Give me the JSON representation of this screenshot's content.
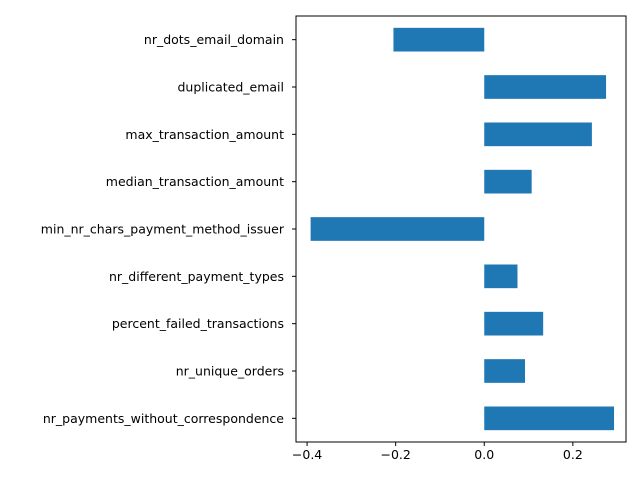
{
  "chart_data": {
    "type": "bar",
    "orientation": "horizontal",
    "categories": [
      "nr_dots_email_domain",
      "duplicated_email",
      "max_transaction_amount",
      "median_transaction_amount",
      "min_nr_chars_payment_method_issuer",
      "nr_different_payment_types",
      "percent_failed_transactions",
      "nr_unique_orders",
      "nr_payments_without_correspondence"
    ],
    "values": [
      -0.205,
      0.275,
      0.243,
      0.107,
      -0.392,
      0.075,
      0.133,
      0.092,
      0.293
    ],
    "xlim": [
      -0.425,
      0.32
    ],
    "xticks": [
      -0.4,
      -0.2,
      0.0,
      0.2
    ],
    "xtick_labels": [
      "−0.4",
      "−0.2",
      "0.0",
      "0.2"
    ],
    "bar_color": "#1f77b4",
    "grid": false,
    "title": "",
    "xlabel": "",
    "ylabel": ""
  }
}
